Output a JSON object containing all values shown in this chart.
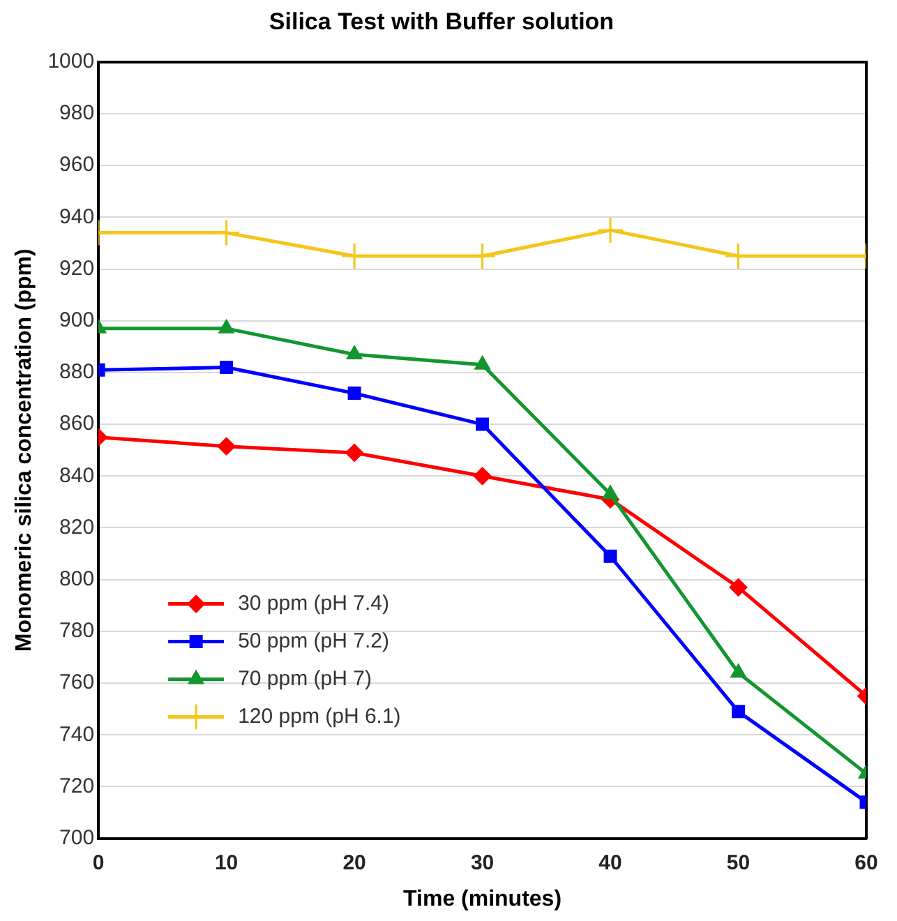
{
  "chart_data": {
    "type": "line",
    "title": "Silica Test with Buffer solution",
    "xlabel": "Time (minutes)",
    "ylabel": "Monomeric silica concentration (ppm)",
    "x": [
      0,
      10,
      20,
      30,
      40,
      50,
      60
    ],
    "series": [
      {
        "name": "30 ppm (pH 7.4)",
        "color": "#ff0000",
        "marker": "diamond",
        "values": [
          855,
          851.5,
          849,
          840,
          831,
          797,
          755
        ]
      },
      {
        "name": "50 ppm (pH 7.2)",
        "color": "#0000ff",
        "marker": "square",
        "values": [
          881,
          882,
          872,
          860,
          809,
          749,
          714
        ]
      },
      {
        "name": "70 ppm (pH 7)",
        "color": "#12962f",
        "marker": "triangle",
        "values": [
          897,
          897,
          887,
          883,
          833,
          764,
          725
        ]
      },
      {
        "name": "120 ppm (pH 6.1)",
        "color": "#f5c518",
        "marker": "cross",
        "values": [
          934,
          934,
          925,
          925,
          935,
          925,
          925
        ]
      }
    ],
    "xlim": [
      0,
      60
    ],
    "xticks": [
      0,
      10,
      20,
      30,
      40,
      50,
      60
    ],
    "ylim": [
      700,
      1000
    ],
    "yticks": [
      700,
      720,
      740,
      760,
      780,
      800,
      820,
      840,
      860,
      880,
      900,
      920,
      940,
      960,
      980,
      1000
    ],
    "grid": "y",
    "legend": "bottom left",
    "line_style": "solid"
  }
}
